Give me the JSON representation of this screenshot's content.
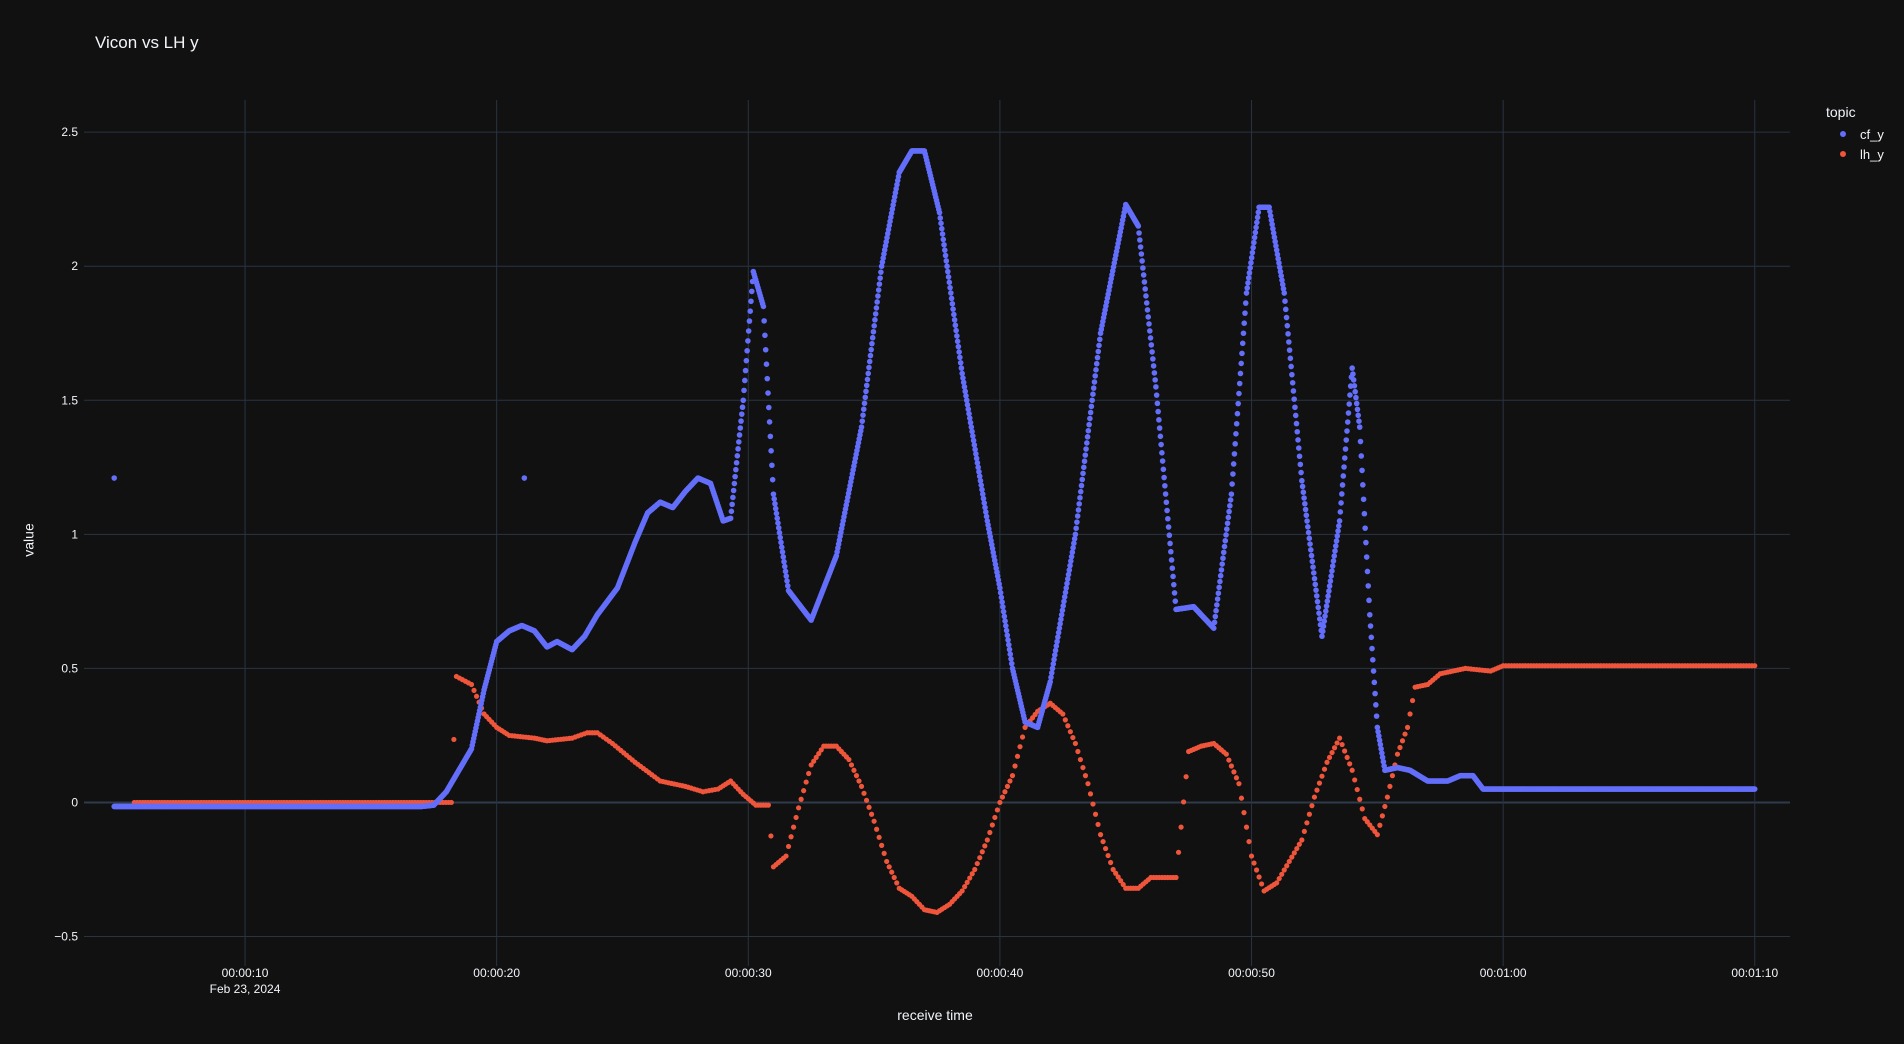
{
  "chart_data": {
    "type": "scatter",
    "title": "Vicon vs LH y",
    "xlabel": "receive time",
    "ylabel": "value",
    "x_unit": "seconds",
    "x_ticks": [
      {
        "value": 10,
        "label": "00:00:10",
        "sublabel": "Feb 23, 2024"
      },
      {
        "value": 20,
        "label": "00:00:20"
      },
      {
        "value": 30,
        "label": "00:00:30"
      },
      {
        "value": 40,
        "label": "00:00:40"
      },
      {
        "value": 50,
        "label": "00:00:50"
      },
      {
        "value": 60,
        "label": "00:01:00"
      },
      {
        "value": 70,
        "label": "00:01:10"
      }
    ],
    "y_ticks": [
      {
        "value": 2.5,
        "label": "2.5"
      },
      {
        "value": 2,
        "label": "2"
      },
      {
        "value": 1.5,
        "label": "1.5"
      },
      {
        "value": 1,
        "label": "1"
      },
      {
        "value": 0.5,
        "label": "0.5"
      },
      {
        "value": 0,
        "label": "0"
      },
      {
        "value": -0.5,
        "label": "−0.5"
      }
    ],
    "xlim": [
      3.6,
      71.4
    ],
    "ylim": [
      -0.61,
      2.62
    ],
    "grid": true,
    "legend": {
      "title": "topic",
      "position": "top-right"
    },
    "background": "#111111",
    "series": [
      {
        "name": "cf_y",
        "color": "#636efa",
        "outliers": [
          [
            4.8,
            1.21
          ],
          [
            21.1,
            1.21
          ]
        ],
        "points": [
          [
            4.8,
            -0.015
          ],
          [
            12,
            -0.015
          ],
          [
            17.0,
            -0.015
          ],
          [
            17.5,
            -0.01
          ],
          [
            18.0,
            0.04
          ],
          [
            18.5,
            0.12
          ],
          [
            19.0,
            0.2
          ],
          [
            19.5,
            0.42
          ],
          [
            20.0,
            0.6
          ],
          [
            20.5,
            0.64
          ],
          [
            21.0,
            0.66
          ],
          [
            21.5,
            0.64
          ],
          [
            22.0,
            0.58
          ],
          [
            22.4,
            0.6
          ],
          [
            23.0,
            0.57
          ],
          [
            23.5,
            0.62
          ],
          [
            24.0,
            0.7
          ],
          [
            24.8,
            0.8
          ],
          [
            25.5,
            0.97
          ],
          [
            26.0,
            1.08
          ],
          [
            26.5,
            1.12
          ],
          [
            27.0,
            1.1
          ],
          [
            27.5,
            1.16
          ],
          [
            28.0,
            1.21
          ],
          [
            28.5,
            1.19
          ],
          [
            29.0,
            1.05
          ],
          [
            29.3,
            1.06
          ],
          [
            29.8,
            1.5
          ],
          [
            30.2,
            1.98
          ],
          [
            30.6,
            1.85
          ],
          [
            31.0,
            1.15
          ],
          [
            31.6,
            0.79
          ],
          [
            32.5,
            0.68
          ],
          [
            33.5,
            0.92
          ],
          [
            34.5,
            1.4
          ],
          [
            35.3,
            2.0
          ],
          [
            36.0,
            2.35
          ],
          [
            36.5,
            2.43
          ],
          [
            37.0,
            2.43
          ],
          [
            37.6,
            2.2
          ],
          [
            38.5,
            1.6
          ],
          [
            39.5,
            1.05
          ],
          [
            40.0,
            0.8
          ],
          [
            40.5,
            0.5
          ],
          [
            41.0,
            0.3
          ],
          [
            41.5,
            0.28
          ],
          [
            42.0,
            0.45
          ],
          [
            43.0,
            1.0
          ],
          [
            44.0,
            1.75
          ],
          [
            45.0,
            2.23
          ],
          [
            45.5,
            2.15
          ],
          [
            46.2,
            1.55
          ],
          [
            47.0,
            0.72
          ],
          [
            47.7,
            0.73
          ],
          [
            48.5,
            0.65
          ],
          [
            49.2,
            1.15
          ],
          [
            49.8,
            1.9
          ],
          [
            50.3,
            2.22
          ],
          [
            50.7,
            2.22
          ],
          [
            51.3,
            1.9
          ],
          [
            52.0,
            1.2
          ],
          [
            52.8,
            0.62
          ],
          [
            53.5,
            1.05
          ],
          [
            54.0,
            1.62
          ],
          [
            54.3,
            1.4
          ],
          [
            54.7,
            0.7
          ],
          [
            55.0,
            0.28
          ],
          [
            55.3,
            0.12
          ],
          [
            55.8,
            0.13
          ],
          [
            56.3,
            0.12
          ],
          [
            57.0,
            0.08
          ],
          [
            57.8,
            0.08
          ],
          [
            58.3,
            0.1
          ],
          [
            58.8,
            0.1
          ],
          [
            59.2,
            0.05
          ],
          [
            65.0,
            0.05
          ],
          [
            70.0,
            0.05
          ]
        ]
      },
      {
        "name": "lh_y",
        "color": "#ef553b",
        "points": [
          [
            5.6,
            0.0
          ],
          [
            12,
            0.0
          ],
          [
            18.2,
            0.0
          ],
          [
            18.4,
            0.47
          ],
          [
            19.0,
            0.44
          ],
          [
            19.5,
            0.33
          ],
          [
            20.0,
            0.28
          ],
          [
            20.5,
            0.25
          ],
          [
            21.5,
            0.24
          ],
          [
            22.0,
            0.23
          ],
          [
            23.0,
            0.24
          ],
          [
            23.6,
            0.26
          ],
          [
            24.0,
            0.26
          ],
          [
            24.6,
            0.22
          ],
          [
            25.5,
            0.15
          ],
          [
            26.5,
            0.08
          ],
          [
            27.5,
            0.06
          ],
          [
            28.2,
            0.04
          ],
          [
            28.8,
            0.05
          ],
          [
            29.3,
            0.08
          ],
          [
            29.8,
            0.03
          ],
          [
            30.3,
            -0.01
          ],
          [
            30.8,
            -0.01
          ],
          [
            31.0,
            -0.24
          ],
          [
            31.5,
            -0.2
          ],
          [
            32.0,
            -0.02
          ],
          [
            32.5,
            0.14
          ],
          [
            33.0,
            0.21
          ],
          [
            33.5,
            0.21
          ],
          [
            34.0,
            0.16
          ],
          [
            34.5,
            0.06
          ],
          [
            35.0,
            -0.07
          ],
          [
            35.5,
            -0.22
          ],
          [
            36.0,
            -0.32
          ],
          [
            36.5,
            -0.35
          ],
          [
            37.0,
            -0.4
          ],
          [
            37.5,
            -0.41
          ],
          [
            38.0,
            -0.38
          ],
          [
            38.5,
            -0.33
          ],
          [
            39.0,
            -0.25
          ],
          [
            39.5,
            -0.14
          ],
          [
            40.0,
            0.0
          ],
          [
            40.5,
            0.1
          ],
          [
            41.0,
            0.28
          ],
          [
            41.5,
            0.34
          ],
          [
            42.0,
            0.37
          ],
          [
            42.5,
            0.33
          ],
          [
            43.0,
            0.22
          ],
          [
            43.5,
            0.07
          ],
          [
            44.0,
            -0.12
          ],
          [
            44.5,
            -0.25
          ],
          [
            45.0,
            -0.32
          ],
          [
            45.5,
            -0.32
          ],
          [
            46.0,
            -0.28
          ],
          [
            47.0,
            -0.28
          ],
          [
            47.5,
            0.19
          ],
          [
            48.0,
            0.21
          ],
          [
            48.5,
            0.22
          ],
          [
            49.0,
            0.18
          ],
          [
            49.5,
            0.07
          ],
          [
            50.0,
            -0.2
          ],
          [
            50.5,
            -0.33
          ],
          [
            51.0,
            -0.3
          ],
          [
            51.5,
            -0.22
          ],
          [
            52.0,
            -0.14
          ],
          [
            52.5,
            0.02
          ],
          [
            53.0,
            0.15
          ],
          [
            53.5,
            0.24
          ],
          [
            54.0,
            0.12
          ],
          [
            54.5,
            -0.06
          ],
          [
            55.0,
            -0.12
          ],
          [
            55.4,
            0.02
          ],
          [
            55.8,
            0.18
          ],
          [
            56.2,
            0.28
          ],
          [
            56.5,
            0.43
          ],
          [
            57.0,
            0.44
          ],
          [
            57.5,
            0.48
          ],
          [
            58.0,
            0.49
          ],
          [
            58.5,
            0.5
          ],
          [
            59.5,
            0.49
          ],
          [
            60.0,
            0.51
          ],
          [
            65.0,
            0.51
          ],
          [
            70.0,
            0.51
          ]
        ]
      }
    ]
  }
}
